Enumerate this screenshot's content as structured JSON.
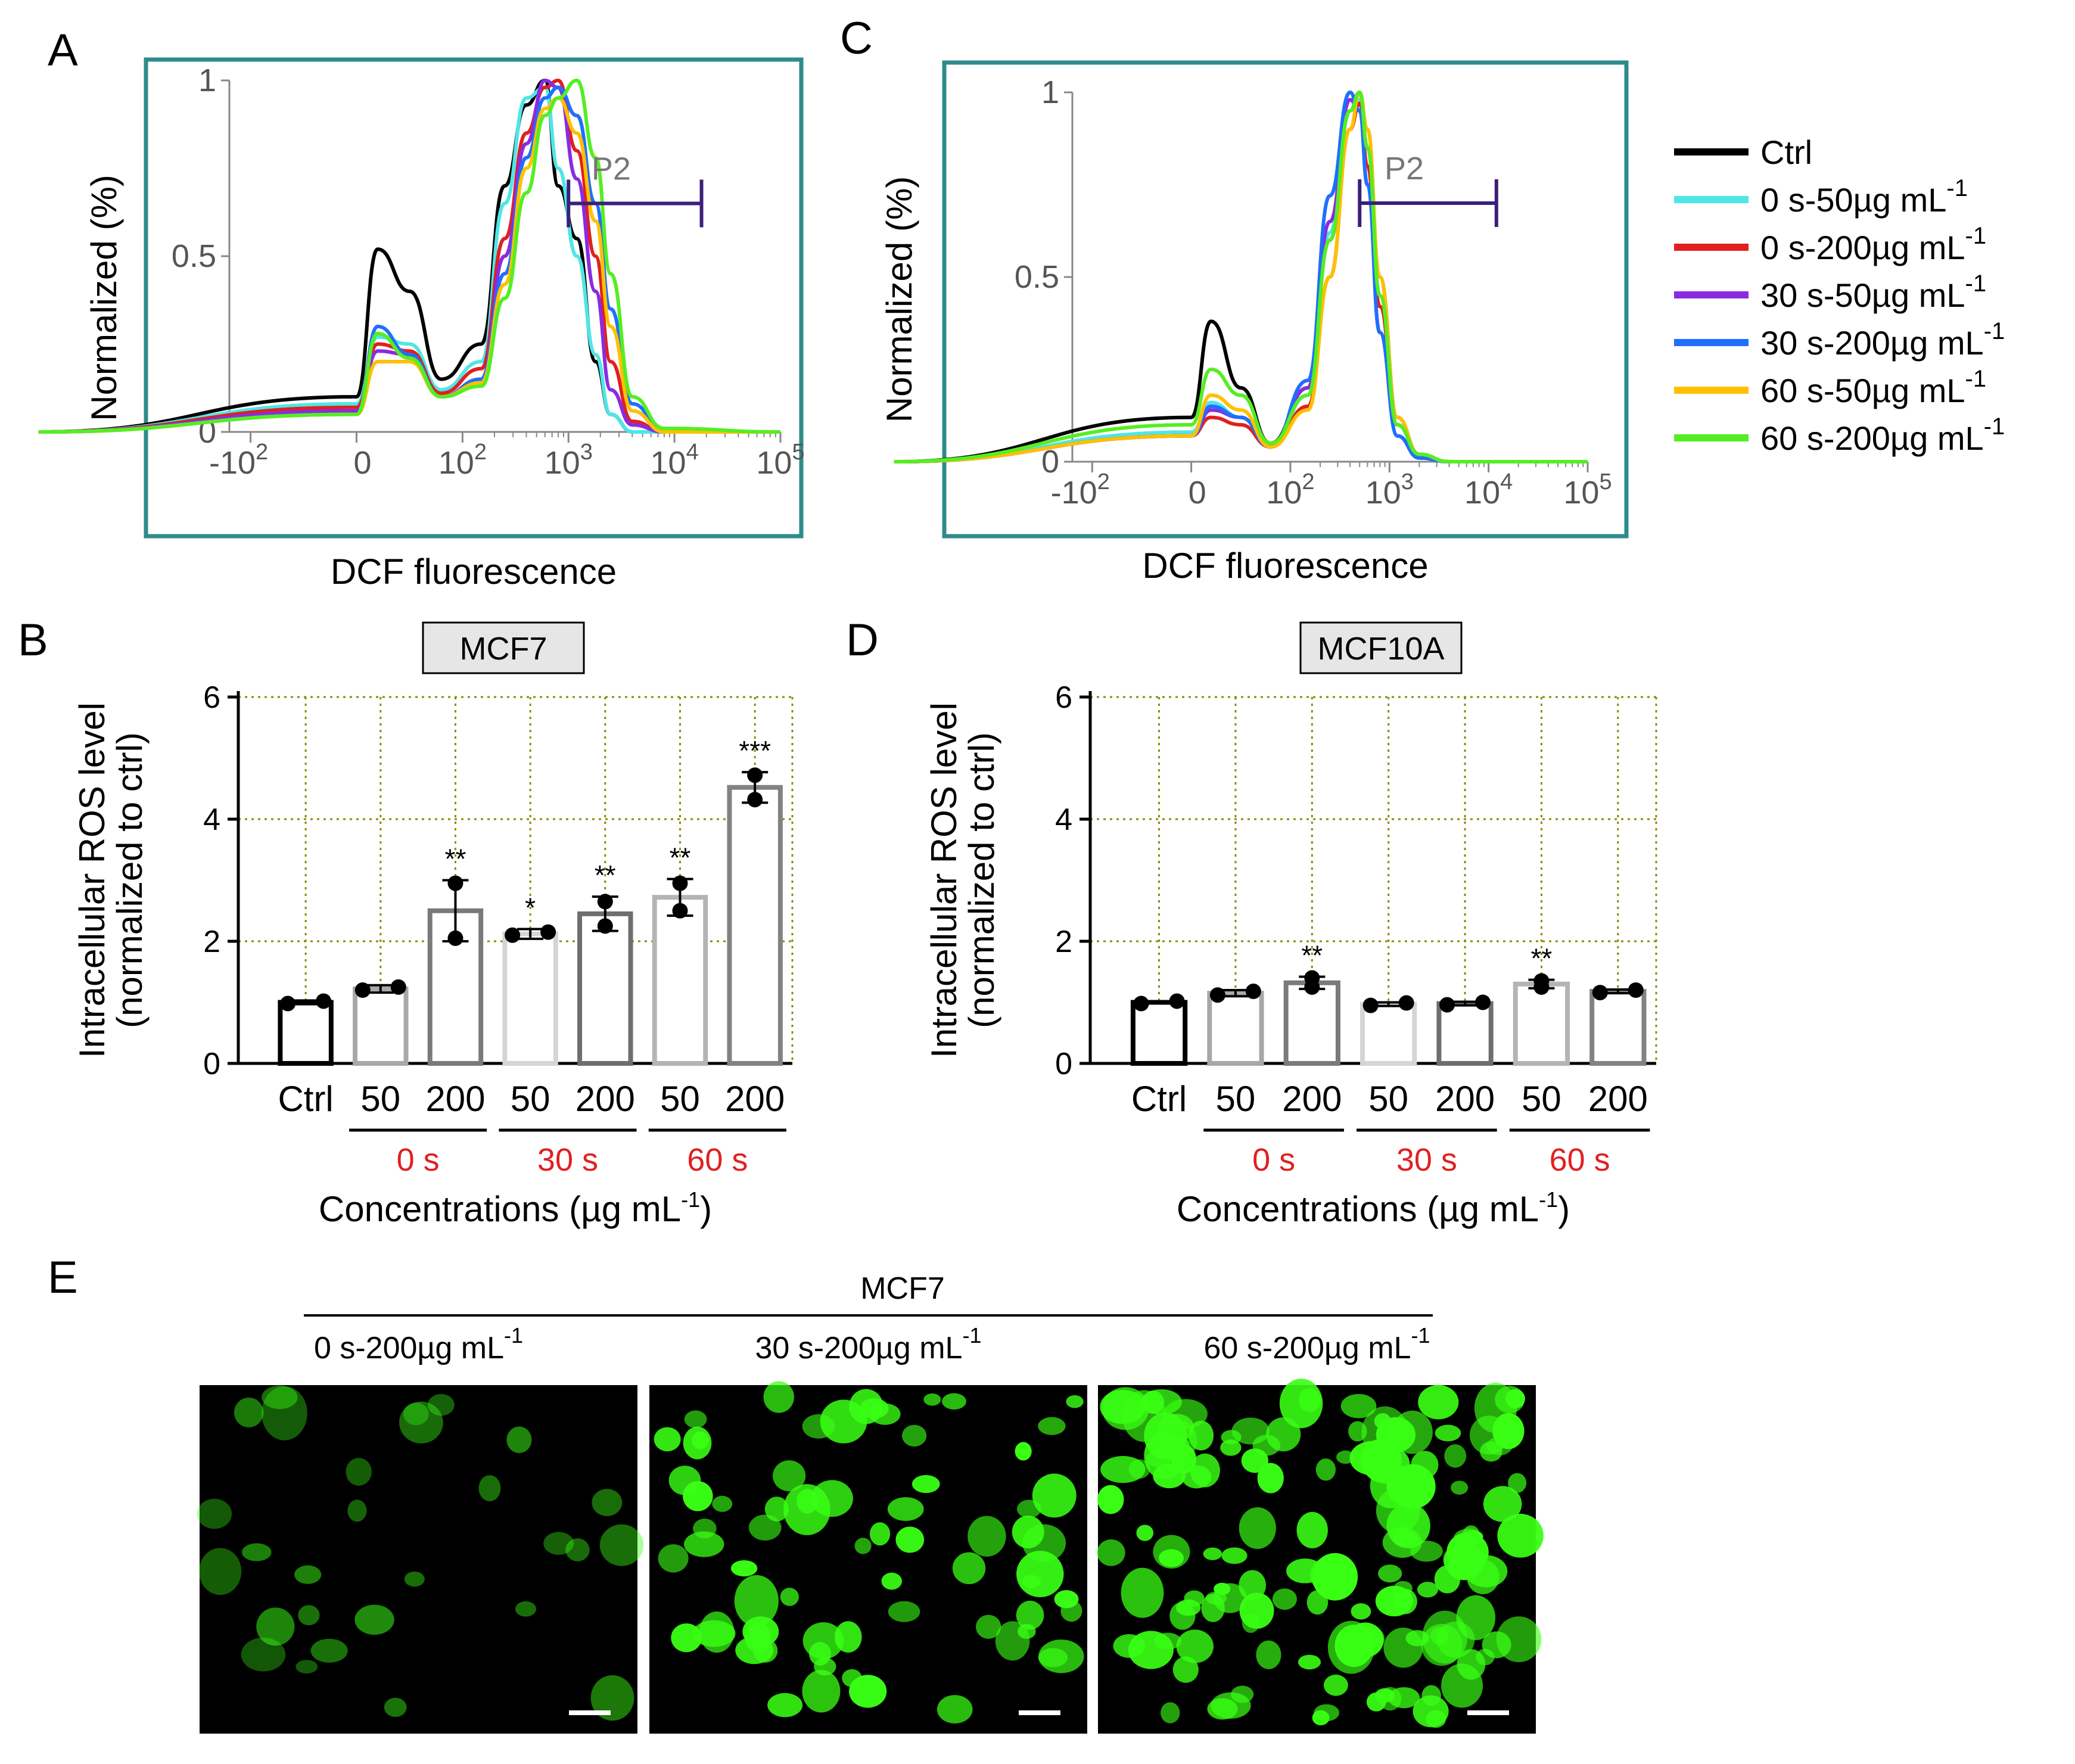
{
  "panels": {
    "a": {
      "letter": "A"
    },
    "b": {
      "letter": "B"
    },
    "c": {
      "letter": "C"
    },
    "d": {
      "letter": "D"
    },
    "e": {
      "letter": "E"
    }
  },
  "colors": {
    "ctrl": "#000000",
    "s0_50": "#4fe6e6",
    "s0_200": "#e02020",
    "s30_50": "#8a2be2",
    "s30_200": "#1f6fff",
    "s60_50": "#ffc000",
    "s60_200": "#55ee22",
    "frame": "#2e8b8b",
    "gate": "#3b1f7a",
    "grid": "#8b8b00",
    "significance_red": "#e02020",
    "fluorescence_green": "#39ff14"
  },
  "legend": {
    "items": [
      {
        "label": "Ctrl",
        "sup": "",
        "color_key": "ctrl"
      },
      {
        "label": "0 s-50µg mL",
        "sup": "-1",
        "color_key": "s0_50"
      },
      {
        "label": "0 s-200µg mL",
        "sup": "-1",
        "color_key": "s0_200"
      },
      {
        "label": "30 s-50µg mL",
        "sup": "-1",
        "color_key": "s30_50"
      },
      {
        "label": "30 s-200µg mL",
        "sup": "-1",
        "color_key": "s30_200"
      },
      {
        "label": "60 s-50µg mL",
        "sup": "-1",
        "color_key": "s60_50"
      },
      {
        "label": "60 s-200µg mL",
        "sup": "-1",
        "color_key": "s60_200"
      }
    ]
  },
  "chart_data": [
    {
      "id": "A",
      "type": "line",
      "xlabel": "DCF fluorescence",
      "ylabel": "Normalized (%)",
      "x_scale": "biexponential",
      "x_ticks": [
        "-10^2",
        "0",
        "10^2",
        "10^3",
        "10^4",
        "10^5"
      ],
      "y_ticks": [
        "0",
        "0.5",
        "1"
      ],
      "ylim": [
        0,
        1
      ],
      "gate": {
        "label": "P2",
        "x_range": [
          1000,
          18000
        ],
        "y": 0.65
      },
      "series": [
        {
          "color_key": "ctrl",
          "x": [
            -300,
            0,
            20,
            50,
            80,
            150,
            250,
            400,
            600,
            800,
            1200,
            1800,
            2500,
            4000,
            8000,
            100000
          ],
          "y": [
            0.0,
            0.1,
            0.52,
            0.4,
            0.15,
            0.25,
            0.7,
            0.93,
            1.0,
            0.7,
            0.55,
            0.2,
            0.05,
            0.0,
            0.0,
            0.0
          ]
        },
        {
          "color_key": "s0_50",
          "x": [
            -300,
            0,
            20,
            50,
            80,
            150,
            250,
            400,
            600,
            800,
            1200,
            1800,
            2500,
            4000,
            8000,
            100000
          ],
          "y": [
            0.0,
            0.08,
            0.27,
            0.25,
            0.12,
            0.2,
            0.65,
            0.95,
            0.98,
            0.75,
            0.5,
            0.22,
            0.05,
            0.0,
            0.0,
            0.0
          ]
        },
        {
          "color_key": "s0_200",
          "x": [
            -300,
            0,
            20,
            50,
            80,
            150,
            250,
            400,
            600,
            800,
            1200,
            1800,
            2500,
            4000,
            8000,
            100000
          ],
          "y": [
            0.0,
            0.07,
            0.25,
            0.23,
            0.11,
            0.18,
            0.55,
            0.85,
            0.98,
            1.0,
            0.8,
            0.5,
            0.2,
            0.03,
            0.0,
            0.0
          ]
        },
        {
          "color_key": "s30_50",
          "x": [
            -300,
            0,
            20,
            50,
            80,
            150,
            250,
            400,
            600,
            800,
            1200,
            1800,
            2500,
            4000,
            8000,
            100000
          ],
          "y": [
            0.0,
            0.06,
            0.23,
            0.22,
            0.1,
            0.15,
            0.5,
            0.82,
            1.0,
            0.98,
            0.72,
            0.4,
            0.12,
            0.02,
            0.0,
            0.0
          ]
        },
        {
          "color_key": "s30_200",
          "x": [
            -300,
            0,
            20,
            50,
            80,
            150,
            250,
            400,
            600,
            800,
            1200,
            1800,
            2500,
            4000,
            8000,
            100000
          ],
          "y": [
            0.0,
            0.05,
            0.3,
            0.22,
            0.1,
            0.15,
            0.45,
            0.78,
            0.95,
            0.98,
            0.9,
            0.65,
            0.35,
            0.08,
            0.0,
            0.0
          ]
        },
        {
          "color_key": "s60_50",
          "x": [
            -300,
            0,
            20,
            50,
            80,
            150,
            250,
            400,
            600,
            800,
            1200,
            1800,
            2500,
            4000,
            8000,
            100000
          ],
          "y": [
            0.0,
            0.05,
            0.2,
            0.2,
            0.1,
            0.14,
            0.42,
            0.75,
            0.92,
            0.95,
            0.85,
            0.6,
            0.3,
            0.06,
            0.0,
            0.0
          ]
        },
        {
          "color_key": "s60_200",
          "x": [
            -300,
            0,
            20,
            50,
            80,
            150,
            250,
            400,
            600,
            800,
            1200,
            1800,
            2500,
            4000,
            8000,
            100000
          ],
          "y": [
            0.0,
            0.05,
            0.28,
            0.21,
            0.1,
            0.13,
            0.38,
            0.68,
            0.9,
            0.95,
            1.0,
            0.78,
            0.45,
            0.1,
            0.01,
            0.0
          ]
        }
      ]
    },
    {
      "id": "C",
      "type": "line",
      "xlabel": "DCF fluorescence",
      "ylabel": "Normalized (%)",
      "x_scale": "biexponential",
      "x_ticks": [
        "-10^2",
        "0",
        "10^2",
        "10^3",
        "10^4",
        "10^5"
      ],
      "y_ticks": [
        "0",
        "0.5",
        "1"
      ],
      "ylim": [
        0,
        1
      ],
      "gate": {
        "label": "P2",
        "x_range": [
          500,
          12000
        ],
        "y": 0.7
      },
      "series": [
        {
          "color_key": "ctrl",
          "x": [
            -300,
            0,
            20,
            50,
            80,
            150,
            250,
            400,
            500,
            600,
            800,
            1200,
            2000,
            4000,
            100000
          ],
          "y": [
            0.0,
            0.12,
            0.38,
            0.2,
            0.05,
            0.2,
            0.6,
            0.95,
            1.0,
            0.85,
            0.5,
            0.12,
            0.02,
            0.0,
            0.0
          ]
        },
        {
          "color_key": "s0_50",
          "x": [
            -300,
            0,
            20,
            50,
            80,
            150,
            250,
            400,
            500,
            600,
            800,
            1200,
            2000,
            4000,
            100000
          ],
          "y": [
            0.0,
            0.08,
            0.16,
            0.12,
            0.04,
            0.18,
            0.62,
            0.98,
            0.98,
            0.85,
            0.45,
            0.1,
            0.02,
            0.0,
            0.0
          ]
        },
        {
          "color_key": "s0_200",
          "x": [
            -300,
            0,
            20,
            50,
            80,
            150,
            250,
            400,
            500,
            600,
            800,
            1200,
            2000,
            4000,
            100000
          ],
          "y": [
            0.0,
            0.07,
            0.12,
            0.1,
            0.04,
            0.15,
            0.5,
            0.9,
            0.97,
            0.8,
            0.42,
            0.1,
            0.02,
            0.0,
            0.0
          ]
        },
        {
          "color_key": "s30_50",
          "x": [
            -300,
            0,
            20,
            50,
            80,
            150,
            250,
            400,
            500,
            600,
            800,
            1200,
            2000,
            4000,
            100000
          ],
          "y": [
            0.0,
            0.07,
            0.14,
            0.12,
            0.04,
            0.2,
            0.65,
            0.98,
            0.95,
            0.75,
            0.35,
            0.07,
            0.01,
            0.0,
            0.0
          ]
        },
        {
          "color_key": "s30_200",
          "x": [
            -300,
            0,
            20,
            50,
            80,
            150,
            250,
            400,
            500,
            600,
            800,
            1200,
            2000,
            4000,
            100000
          ],
          "y": [
            0.0,
            0.07,
            0.15,
            0.12,
            0.04,
            0.22,
            0.72,
            1.0,
            0.95,
            0.75,
            0.35,
            0.07,
            0.01,
            0.0,
            0.0
          ]
        },
        {
          "color_key": "s60_50",
          "x": [
            -300,
            0,
            20,
            50,
            80,
            150,
            250,
            400,
            500,
            600,
            800,
            1200,
            2000,
            4000,
            100000
          ],
          "y": [
            0.0,
            0.07,
            0.18,
            0.14,
            0.04,
            0.14,
            0.5,
            0.9,
            1.0,
            0.9,
            0.5,
            0.12,
            0.02,
            0.0,
            0.0
          ]
        },
        {
          "color_key": "s60_200",
          "x": [
            -300,
            0,
            20,
            50,
            80,
            150,
            250,
            400,
            500,
            600,
            800,
            1200,
            2000,
            4000,
            100000
          ],
          "y": [
            0.0,
            0.1,
            0.25,
            0.18,
            0.05,
            0.18,
            0.6,
            0.95,
            1.0,
            0.85,
            0.45,
            0.1,
            0.02,
            0.0,
            0.0
          ]
        }
      ]
    },
    {
      "id": "B",
      "type": "bar",
      "title": "MCF7",
      "ylabel_line1": "Intracellular ROS level",
      "ylabel_line2": "(normalized to ctrl)",
      "xlabel": "Concentrations (µg mL",
      "xlabel_sup": "-1",
      "xlabel_end": ")",
      "categories": [
        "Ctrl",
        "50",
        "200",
        "50",
        "200",
        "50",
        "200"
      ],
      "groups": [
        {
          "label": "0 s",
          "from": 1,
          "to": 2
        },
        {
          "label": "30 s",
          "from": 3,
          "to": 4
        },
        {
          "label": "60 s",
          "from": 5,
          "to": 6
        }
      ],
      "values": [
        1.0,
        1.22,
        2.5,
        2.12,
        2.45,
        2.72,
        4.52
      ],
      "errors": [
        0.03,
        0.06,
        0.5,
        0.08,
        0.28,
        0.3,
        0.25
      ],
      "points": [
        [
          0.98,
          1.02
        ],
        [
          1.2,
          1.25
        ],
        [
          2.95,
          2.05
        ],
        [
          2.1,
          2.15
        ],
        [
          2.65,
          2.25
        ],
        [
          2.95,
          2.5
        ],
        [
          4.72,
          4.32
        ]
      ],
      "significance": [
        "",
        "",
        "**",
        "*",
        "**",
        "**",
        "***"
      ],
      "bar_colors": [
        "#000000",
        "#a8a8a8",
        "#7a7a7a",
        "#d5d5d5",
        "#6e6e6e",
        "#b4b4b4",
        "#828282"
      ],
      "ylim": [
        0,
        6
      ],
      "y_ticks": [
        0,
        2,
        4,
        6
      ],
      "grid": true
    },
    {
      "id": "D",
      "type": "bar",
      "title": "MCF10A",
      "ylabel_line1": "Intracellular ROS level",
      "ylabel_line2": "(normalized to ctrl)",
      "xlabel": "Concentrations (µg mL",
      "xlabel_sup": "-1",
      "xlabel_end": ")",
      "categories": [
        "Ctrl",
        "50",
        "200",
        "50",
        "200",
        "50",
        "200"
      ],
      "groups": [
        {
          "label": "0 s",
          "from": 1,
          "to": 2
        },
        {
          "label": "30 s",
          "from": 3,
          "to": 4
        },
        {
          "label": "60 s",
          "from": 5,
          "to": 6
        }
      ],
      "values": [
        1.0,
        1.15,
        1.32,
        0.97,
        0.98,
        1.3,
        1.18
      ],
      "errors": [
        0.02,
        0.05,
        0.1,
        0.03,
        0.03,
        0.07,
        0.03
      ],
      "points": [
        [
          0.98,
          1.02
        ],
        [
          1.12,
          1.18
        ],
        [
          1.25,
          1.4
        ],
        [
          0.95,
          0.99
        ],
        [
          0.96,
          1.0
        ],
        [
          1.25,
          1.35
        ],
        [
          1.16,
          1.2
        ]
      ],
      "significance": [
        "",
        "",
        "**",
        "",
        "",
        "**",
        ""
      ],
      "bar_colors": [
        "#000000",
        "#a8a8a8",
        "#7a7a7a",
        "#d5d5d5",
        "#6e6e6e",
        "#b4b4b4",
        "#828282"
      ],
      "ylim": [
        0,
        6
      ],
      "y_ticks": [
        0,
        2,
        4,
        6
      ],
      "grid": true
    }
  ],
  "images": {
    "header": "MCF7",
    "items": [
      {
        "label": "0 s-200µg mL",
        "sup": "-1",
        "intensity": "low"
      },
      {
        "label": "30 s-200µg mL",
        "sup": "-1",
        "intensity": "medium"
      },
      {
        "label": "60 s-200µg mL",
        "sup": "-1",
        "intensity": "high"
      }
    ]
  }
}
